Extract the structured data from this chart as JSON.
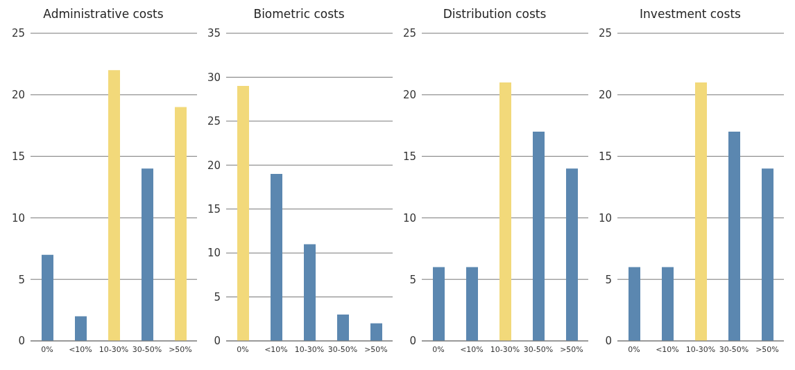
{
  "chart_data": [
    {
      "type": "bar",
      "title": "Administrative costs",
      "categories": [
        "0%",
        "<10%",
        "10-30%",
        "30-50%",
        ">50%"
      ],
      "values": [
        7,
        2,
        22,
        14,
        19
      ],
      "colors": [
        "#5b87b0",
        "#5b87b0",
        "#f2d97a",
        "#5b87b0",
        "#f2d97a"
      ],
      "ylim": [
        0,
        25
      ],
      "yticks": [
        0,
        5,
        10,
        15,
        20,
        25
      ],
      "grid": "y"
    },
    {
      "type": "bar",
      "title": "Biometric costs",
      "categories": [
        "0%",
        "<10%",
        "10-30%",
        "30-50%",
        ">50%"
      ],
      "values": [
        29,
        19,
        11,
        3,
        2
      ],
      "colors": [
        "#f2d97a",
        "#5b87b0",
        "#5b87b0",
        "#5b87b0",
        "#5b87b0"
      ],
      "ylim": [
        0,
        35
      ],
      "yticks": [
        0,
        5,
        10,
        15,
        20,
        25,
        30,
        35
      ],
      "grid": "y"
    },
    {
      "type": "bar",
      "title": "Distribution costs",
      "categories": [
        "0%",
        "<10%",
        "10-30%",
        "30-50%",
        ">50%"
      ],
      "values": [
        6,
        6,
        21,
        17,
        14
      ],
      "colors": [
        "#5b87b0",
        "#5b87b0",
        "#f2d97a",
        "#5b87b0",
        "#5b87b0"
      ],
      "ylim": [
        0,
        25
      ],
      "yticks": [
        0,
        5,
        10,
        15,
        20,
        25
      ],
      "grid": "y"
    },
    {
      "type": "bar",
      "title": "Investment costs",
      "categories": [
        "0%",
        "<10%",
        "10-30%",
        "30-50%",
        ">50%"
      ],
      "values": [
        6,
        6,
        21,
        17,
        14
      ],
      "colors": [
        "#5b87b0",
        "#5b87b0",
        "#f2d97a",
        "#5b87b0",
        "#5b87b0"
      ],
      "ylim": [
        0,
        25
      ],
      "yticks": [
        0,
        5,
        10,
        15,
        20,
        25
      ],
      "grid": "y"
    }
  ]
}
